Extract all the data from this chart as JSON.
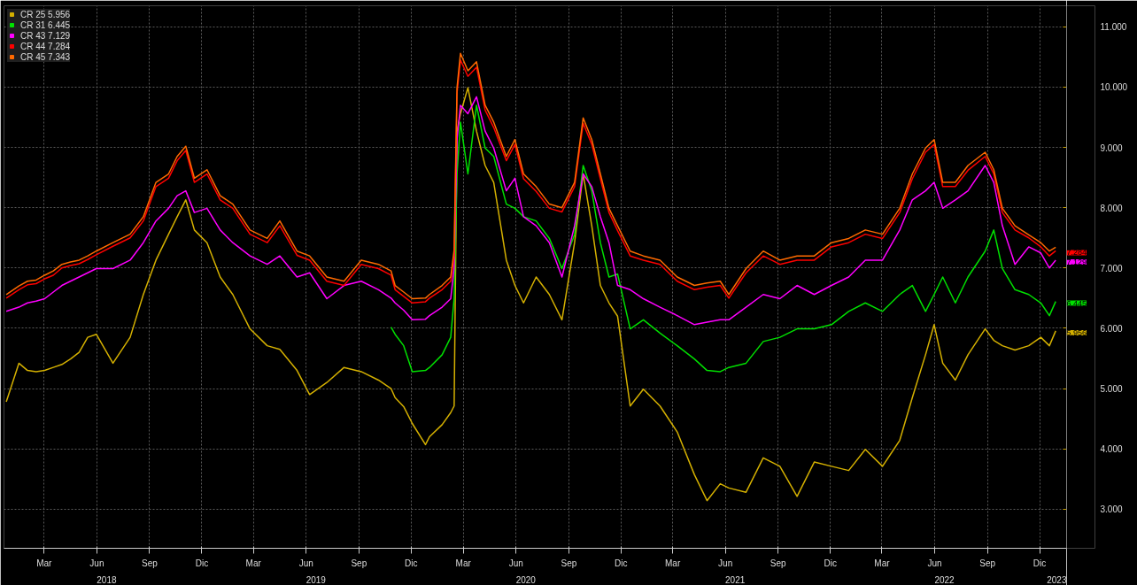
{
  "chart_data": {
    "type": "line",
    "x": [
      "2018-01-08",
      "2018-01-30",
      "2018-02-14",
      "2018-03-01",
      "2018-03-16",
      "2018-03-31",
      "2018-04-15",
      "2018-04-30",
      "2018-05-15",
      "2018-05-30",
      "2018-06-14",
      "2018-07-13",
      "2018-08-12",
      "2018-09-04",
      "2018-09-26",
      "2018-10-18",
      "2018-11-02",
      "2018-11-17",
      "2018-12-02",
      "2018-12-24",
      "2019-01-16",
      "2019-02-07",
      "2019-03-09",
      "2019-04-08",
      "2019-04-30",
      "2019-05-30",
      "2019-06-21",
      "2019-07-21",
      "2019-08-20",
      "2019-09-19",
      "2019-10-19",
      "2019-11-10",
      "2019-11-17",
      "2019-12-02",
      "2019-12-17",
      "2020-01-09",
      "2020-01-16",
      "2020-02-07",
      "2020-02-22",
      "2020-02-28",
      "2020-03-04",
      "2020-03-10",
      "2020-03-23",
      "2020-04-07",
      "2020-04-22",
      "2020-05-07",
      "2020-05-29",
      "2020-06-13",
      "2020-06-28",
      "2020-07-20",
      "2020-08-12",
      "2020-09-03",
      "2020-09-25",
      "2020-10-10",
      "2020-10-25",
      "2020-11-09",
      "2020-11-24",
      "2020-12-09",
      "2020-12-31",
      "2021-01-23",
      "2021-02-21",
      "2021-03-23",
      "2021-04-22",
      "2021-05-14",
      "2021-06-06",
      "2021-06-21",
      "2021-07-21",
      "2021-08-20",
      "2021-09-18",
      "2021-10-18",
      "2021-11-17",
      "2021-12-17",
      "2022-01-16",
      "2022-02-14",
      "2022-03-16",
      "2022-04-15",
      "2022-05-07",
      "2022-05-30",
      "2022-06-14",
      "2022-06-29",
      "2022-07-21",
      "2022-08-12",
      "2022-09-11",
      "2022-09-26",
      "2022-10-11",
      "2022-11-02",
      "2022-11-26",
      "2022-12-17",
      "2023-01-01",
      "2023-01-12"
    ],
    "series": [
      {
        "name": "CR 25 5.956",
        "color": "#d4b000",
        "value_labels": [
          null,
          null,
          null,
          null,
          null,
          null,
          null,
          null,
          null,
          null,
          null,
          null,
          null,
          null,
          null,
          null,
          null,
          null,
          null,
          null,
          null,
          null,
          null,
          null,
          null,
          null,
          null,
          null,
          null,
          null,
          null,
          null,
          null,
          null,
          null,
          null,
          null,
          null,
          null,
          null,
          null,
          null,
          null,
          null,
          null,
          null,
          null,
          null,
          null,
          null,
          null,
          null,
          null,
          null,
          null,
          null,
          null,
          null,
          null,
          null,
          null,
          null,
          null,
          null,
          null,
          null,
          null,
          null,
          null,
          null,
          null,
          null,
          null,
          null,
          null,
          null,
          null,
          null,
          null,
          null,
          null,
          null,
          null,
          null,
          null,
          null,
          null,
          null,
          null,
          "5.956"
        ],
        "values": [
          4.78,
          5.42,
          5.3,
          5.28,
          5.3,
          5.35,
          5.4,
          5.49,
          5.6,
          5.85,
          5.9,
          5.42,
          5.85,
          6.56,
          7.13,
          7.56,
          7.85,
          8.13,
          7.63,
          7.42,
          6.85,
          6.56,
          5.99,
          5.71,
          5.65,
          5.3,
          4.9,
          5.1,
          5.35,
          5.28,
          5.14,
          5.0,
          4.85,
          4.7,
          4.42,
          4.07,
          4.2,
          4.4,
          4.6,
          4.71,
          9.27,
          9.56,
          9.99,
          9.27,
          8.7,
          8.42,
          7.13,
          6.71,
          6.42,
          6.85,
          6.56,
          6.14,
          7.42,
          8.56,
          7.7,
          6.71,
          6.42,
          6.2,
          4.71,
          4.99,
          4.71,
          4.28,
          3.57,
          3.14,
          3.42,
          3.35,
          3.28,
          3.85,
          3.71,
          3.21,
          3.78,
          3.71,
          3.64,
          3.99,
          3.71,
          4.14,
          4.85,
          5.56,
          6.06,
          5.42,
          5.14,
          5.56,
          5.99,
          5.8,
          5.71,
          5.64,
          5.71,
          5.85,
          5.71,
          5.956
        ]
      },
      {
        "name": "CR 31 6.445",
        "color": "#00e000",
        "value_labels": [
          null,
          null,
          null,
          null,
          null,
          null,
          null,
          null,
          null,
          null,
          null,
          null,
          null,
          null,
          null,
          null,
          null,
          null,
          null,
          null,
          null,
          null,
          null,
          null,
          null,
          null,
          null,
          null,
          null,
          null,
          null,
          null,
          null,
          null,
          null,
          null,
          null,
          null,
          null,
          null,
          null,
          null,
          null,
          null,
          null,
          null,
          null,
          null,
          null,
          null,
          null,
          null,
          null,
          null,
          null,
          null,
          null,
          null,
          null,
          null,
          null,
          null,
          null,
          null,
          null,
          null,
          null,
          null,
          null,
          null,
          null,
          null,
          null,
          null,
          null,
          null,
          null,
          null,
          null,
          null,
          null,
          null,
          null,
          null,
          null,
          null,
          null,
          null,
          null,
          "6.445"
        ],
        "values": [
          null,
          null,
          null,
          null,
          null,
          null,
          null,
          null,
          null,
          null,
          null,
          null,
          null,
          null,
          null,
          null,
          null,
          null,
          null,
          null,
          null,
          null,
          null,
          null,
          null,
          null,
          null,
          null,
          null,
          null,
          null,
          6.02,
          5.9,
          5.71,
          5.28,
          5.3,
          5.35,
          5.56,
          5.85,
          6.5,
          8.56,
          9.42,
          8.56,
          9.7,
          8.99,
          8.85,
          8.06,
          7.99,
          7.85,
          7.78,
          7.49,
          6.99,
          7.56,
          8.7,
          8.28,
          7.42,
          6.85,
          6.9,
          5.99,
          6.14,
          5.92,
          5.71,
          5.49,
          5.3,
          5.28,
          5.35,
          5.42,
          5.78,
          5.85,
          5.99,
          5.99,
          6.06,
          6.28,
          6.42,
          6.28,
          6.56,
          6.71,
          6.28,
          6.56,
          6.85,
          6.42,
          6.85,
          7.28,
          7.63,
          6.99,
          6.64,
          6.56,
          6.42,
          6.21,
          6.445
        ]
      },
      {
        "name": "CR 43 7.129",
        "color": "#ff00ff",
        "value_labels": [
          null,
          null,
          null,
          null,
          null,
          null,
          null,
          null,
          null,
          null,
          null,
          null,
          null,
          null,
          null,
          null,
          null,
          null,
          null,
          null,
          null,
          null,
          null,
          null,
          null,
          null,
          null,
          null,
          null,
          null,
          null,
          null,
          null,
          null,
          null,
          null,
          null,
          null,
          null,
          null,
          null,
          null,
          null,
          null,
          null,
          null,
          null,
          null,
          null,
          null,
          null,
          null,
          null,
          null,
          null,
          null,
          null,
          null,
          null,
          null,
          null,
          null,
          null,
          null,
          null,
          null,
          null,
          null,
          null,
          null,
          null,
          null,
          null,
          null,
          null,
          null,
          null,
          null,
          null,
          null,
          null,
          null,
          null,
          null,
          null,
          null,
          null,
          null,
          null,
          "7.129"
        ],
        "values": [
          6.28,
          6.35,
          6.42,
          6.45,
          6.49,
          6.6,
          6.71,
          6.78,
          6.85,
          6.92,
          6.99,
          6.99,
          7.13,
          7.42,
          7.78,
          7.99,
          8.2,
          8.28,
          7.92,
          7.99,
          7.63,
          7.42,
          7.2,
          7.06,
          7.2,
          6.85,
          6.92,
          6.49,
          6.71,
          6.78,
          6.64,
          6.5,
          6.42,
          6.3,
          6.14,
          6.15,
          6.21,
          6.35,
          6.49,
          7.0,
          9.13,
          9.7,
          9.56,
          9.84,
          9.27,
          8.99,
          8.28,
          8.49,
          7.85,
          7.7,
          7.42,
          6.85,
          7.7,
          8.56,
          8.35,
          7.85,
          7.42,
          6.71,
          6.64,
          6.49,
          6.35,
          6.21,
          6.06,
          6.1,
          6.14,
          6.14,
          6.35,
          6.56,
          6.49,
          6.71,
          6.56,
          6.71,
          6.85,
          7.13,
          7.13,
          7.63,
          8.13,
          8.28,
          8.42,
          7.99,
          8.13,
          8.28,
          8.7,
          8.42,
          7.7,
          7.06,
          7.35,
          7.25,
          7.0,
          7.129
        ]
      },
      {
        "name": "CR 44 7.284",
        "color": "#ff0000",
        "value_labels": [
          null,
          null,
          null,
          null,
          null,
          null,
          null,
          null,
          null,
          null,
          null,
          null,
          null,
          null,
          null,
          null,
          null,
          null,
          null,
          null,
          null,
          null,
          null,
          null,
          null,
          null,
          null,
          null,
          null,
          null,
          null,
          null,
          null,
          null,
          null,
          null,
          null,
          null,
          null,
          null,
          null,
          null,
          null,
          null,
          null,
          null,
          null,
          null,
          null,
          null,
          null,
          null,
          null,
          null,
          null,
          null,
          null,
          null,
          null,
          null,
          null,
          null,
          null,
          null,
          null,
          null,
          null,
          null,
          null,
          null,
          null,
          null,
          null,
          null,
          null,
          null,
          null,
          null,
          null,
          null,
          null,
          null,
          null,
          null,
          null,
          null,
          null,
          null,
          null,
          "7.284"
        ],
        "values": [
          6.5,
          6.64,
          6.72,
          6.74,
          6.82,
          6.88,
          7.0,
          7.04,
          7.07,
          7.14,
          7.22,
          7.36,
          7.5,
          7.78,
          8.35,
          8.49,
          8.78,
          8.95,
          8.42,
          8.56,
          8.13,
          7.99,
          7.56,
          7.42,
          7.7,
          7.21,
          7.13,
          6.78,
          6.71,
          7.06,
          6.99,
          6.88,
          6.64,
          6.53,
          6.42,
          6.44,
          6.5,
          6.64,
          6.78,
          7.2,
          9.9,
          10.45,
          10.18,
          10.33,
          9.62,
          9.33,
          8.78,
          9.05,
          8.48,
          8.27,
          7.99,
          7.93,
          8.35,
          9.4,
          9.05,
          8.48,
          7.92,
          7.62,
          7.2,
          7.13,
          7.06,
          6.78,
          6.64,
          6.68,
          6.71,
          6.5,
          6.92,
          7.2,
          7.06,
          7.13,
          7.13,
          7.35,
          7.42,
          7.56,
          7.49,
          7.92,
          8.48,
          8.92,
          9.05,
          8.35,
          8.35,
          8.62,
          8.85,
          8.56,
          7.92,
          7.63,
          7.5,
          7.35,
          7.2,
          7.284
        ]
      },
      {
        "name": "CR 45 7.343",
        "color": "#ff6a00",
        "values": [
          6.56,
          6.7,
          6.78,
          6.8,
          6.88,
          6.95,
          7.06,
          7.1,
          7.13,
          7.2,
          7.28,
          7.42,
          7.56,
          7.85,
          8.42,
          8.56,
          8.85,
          9.02,
          8.49,
          8.63,
          8.2,
          8.06,
          7.63,
          7.49,
          7.78,
          7.28,
          7.2,
          6.85,
          6.78,
          7.13,
          7.06,
          6.95,
          6.71,
          6.6,
          6.49,
          6.5,
          6.56,
          6.71,
          6.85,
          7.3,
          9.99,
          10.56,
          10.27,
          10.42,
          9.7,
          9.42,
          8.85,
          9.13,
          8.56,
          8.35,
          8.06,
          8.0,
          8.42,
          9.49,
          9.13,
          8.56,
          7.99,
          7.7,
          7.28,
          7.2,
          7.13,
          6.85,
          6.71,
          6.75,
          6.78,
          6.56,
          6.99,
          7.28,
          7.13,
          7.2,
          7.2,
          7.42,
          7.49,
          7.63,
          7.56,
          7.99,
          8.56,
          8.99,
          9.13,
          8.42,
          8.42,
          8.7,
          8.92,
          8.63,
          7.99,
          7.7,
          7.55,
          7.42,
          7.28,
          7.343
        ]
      }
    ],
    "xlim": [
      "2018-01-04",
      "2023-01-31"
    ],
    "xticks": [
      {
        "value": "2018-03-15",
        "label": "Mar"
      },
      {
        "value": "2018-06-15",
        "label": "Jun"
      },
      {
        "value": "2018-09-15",
        "label": "Sep"
      },
      {
        "value": "2018-12-15",
        "label": "Dic"
      },
      {
        "value": "2019-03-15",
        "label": "Mar"
      },
      {
        "value": "2019-06-15",
        "label": "Jun"
      },
      {
        "value": "2019-09-15",
        "label": "Sep"
      },
      {
        "value": "2019-12-15",
        "label": "Dic"
      },
      {
        "value": "2020-03-15",
        "label": "Mar"
      },
      {
        "value": "2020-06-15",
        "label": "Jun"
      },
      {
        "value": "2020-09-15",
        "label": "Sep"
      },
      {
        "value": "2020-12-15",
        "label": "Dic"
      },
      {
        "value": "2021-03-15",
        "label": "Mar"
      },
      {
        "value": "2021-06-15",
        "label": "Jun"
      },
      {
        "value": "2021-09-15",
        "label": "Sep"
      },
      {
        "value": "2021-12-15",
        "label": "Dic"
      },
      {
        "value": "2022-03-15",
        "label": "Mar"
      },
      {
        "value": "2022-06-15",
        "label": "Jun"
      },
      {
        "value": "2022-09-15",
        "label": "Sep"
      },
      {
        "value": "2022-12-15",
        "label": "Dic"
      }
    ],
    "x2lim": [
      "2018-01-04",
      "2023-01-31"
    ],
    "x2ticks": [
      {
        "value": "2018-07-02",
        "label": "2018"
      },
      {
        "value": "2019-07-02",
        "label": "2019"
      },
      {
        "value": "2020-07-02",
        "label": "2020"
      },
      {
        "value": "2021-07-02",
        "label": "2021"
      },
      {
        "value": "2022-07-02",
        "label": "2022"
      },
      {
        "value": "2023-01-16",
        "label": "2023"
      }
    ],
    "ylim": [
      2.35,
      11.35
    ],
    "yticks": [
      {
        "value": 3,
        "label": "3.000"
      },
      {
        "value": 4,
        "label": "4.000"
      },
      {
        "value": 5,
        "label": "5.000"
      },
      {
        "value": 6,
        "label": "6.000"
      },
      {
        "value": 7,
        "label": "7.000"
      },
      {
        "value": 8,
        "label": "8.000"
      },
      {
        "value": 9,
        "label": "9.000"
      },
      {
        "value": 10,
        "label": "10.000"
      },
      {
        "value": 11,
        "label": "11.000"
      }
    ],
    "grid": true,
    "legend": "top left",
    "marker": "none",
    "line_style": "solid"
  }
}
